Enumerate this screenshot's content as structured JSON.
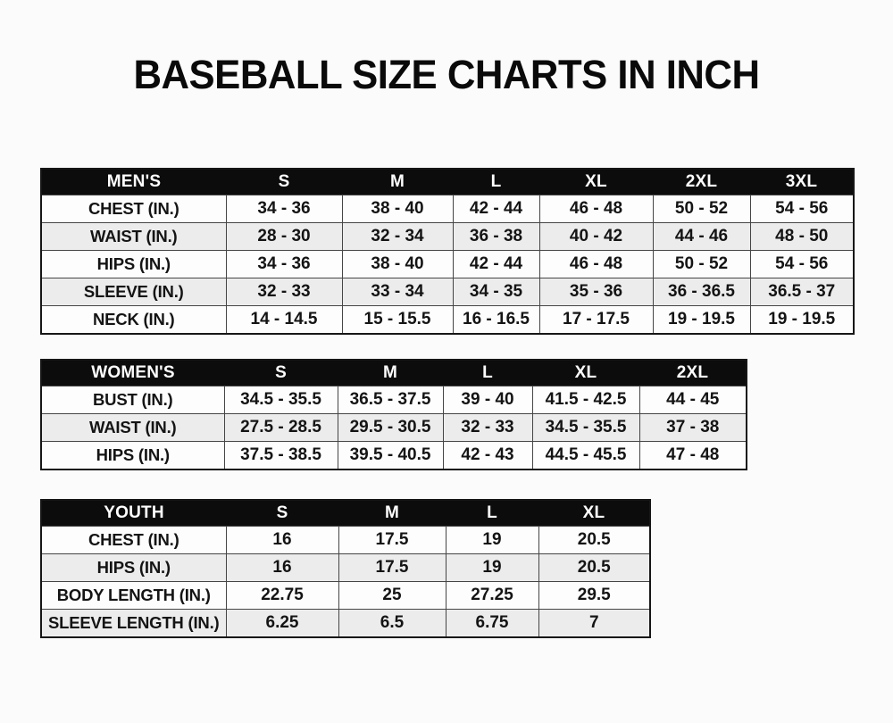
{
  "title": "BASEBALL SIZE CHARTS IN INCH",
  "colors": {
    "header_bg": "#0c0c0c",
    "header_text": "#ffffff",
    "row_white": "#fdfdfd",
    "row_gray": "#ececec",
    "border": "#454545",
    "text": "#141414",
    "page_bg": "#fbfbfb"
  },
  "tables": [
    {
      "id": "mens",
      "header": [
        "MEN'S",
        "S",
        "M",
        "L",
        "XL",
        "2XL",
        "3XL"
      ],
      "rows": [
        [
          "CHEST (IN.)",
          "34 - 36",
          "38 - 40",
          "42 - 44",
          "46 - 48",
          "50 - 52",
          "54 - 56"
        ],
        [
          "WAIST (IN.)",
          "28 - 30",
          "32 - 34",
          "36 - 38",
          "40 - 42",
          "44 - 46",
          "48 - 50"
        ],
        [
          "HIPS (IN.)",
          "34 - 36",
          "38 - 40",
          "42 - 44",
          "46 - 48",
          "50 - 52",
          "54 - 56"
        ],
        [
          "SLEEVE (IN.)",
          "32 - 33",
          "33 - 34",
          "34 - 35",
          "35 - 36",
          "36 - 36.5",
          "36.5 - 37"
        ],
        [
          "NECK (IN.)",
          "14 - 14.5",
          "15 - 15.5",
          "16 - 16.5",
          "17 - 17.5",
          "19 - 19.5",
          "19 - 19.5"
        ]
      ]
    },
    {
      "id": "womens",
      "header": [
        "WOMEN'S",
        "S",
        "M",
        "L",
        "XL",
        "2XL"
      ],
      "rows": [
        [
          "BUST (IN.)",
          "34.5 - 35.5",
          "36.5 - 37.5",
          "39 - 40",
          "41.5 - 42.5",
          "44 - 45"
        ],
        [
          "WAIST (IN.)",
          "27.5 - 28.5",
          "29.5 - 30.5",
          "32 - 33",
          "34.5 - 35.5",
          "37 - 38"
        ],
        [
          "HIPS (IN.)",
          "37.5 - 38.5",
          "39.5 - 40.5",
          "42 - 43",
          "44.5 - 45.5",
          "47 - 48"
        ]
      ]
    },
    {
      "id": "youth",
      "header": [
        "YOUTH",
        "S",
        "M",
        "L",
        "XL"
      ],
      "rows": [
        [
          "CHEST (IN.)",
          "16",
          "17.5",
          "19",
          "20.5"
        ],
        [
          "HIPS (IN.)",
          "16",
          "17.5",
          "19",
          "20.5"
        ],
        [
          "BODY LENGTH (IN.)",
          "22.75",
          "25",
          "27.25",
          "29.5"
        ],
        [
          "SLEEVE LENGTH (IN.)",
          "6.25",
          "6.5",
          "6.75",
          "7"
        ]
      ]
    }
  ]
}
